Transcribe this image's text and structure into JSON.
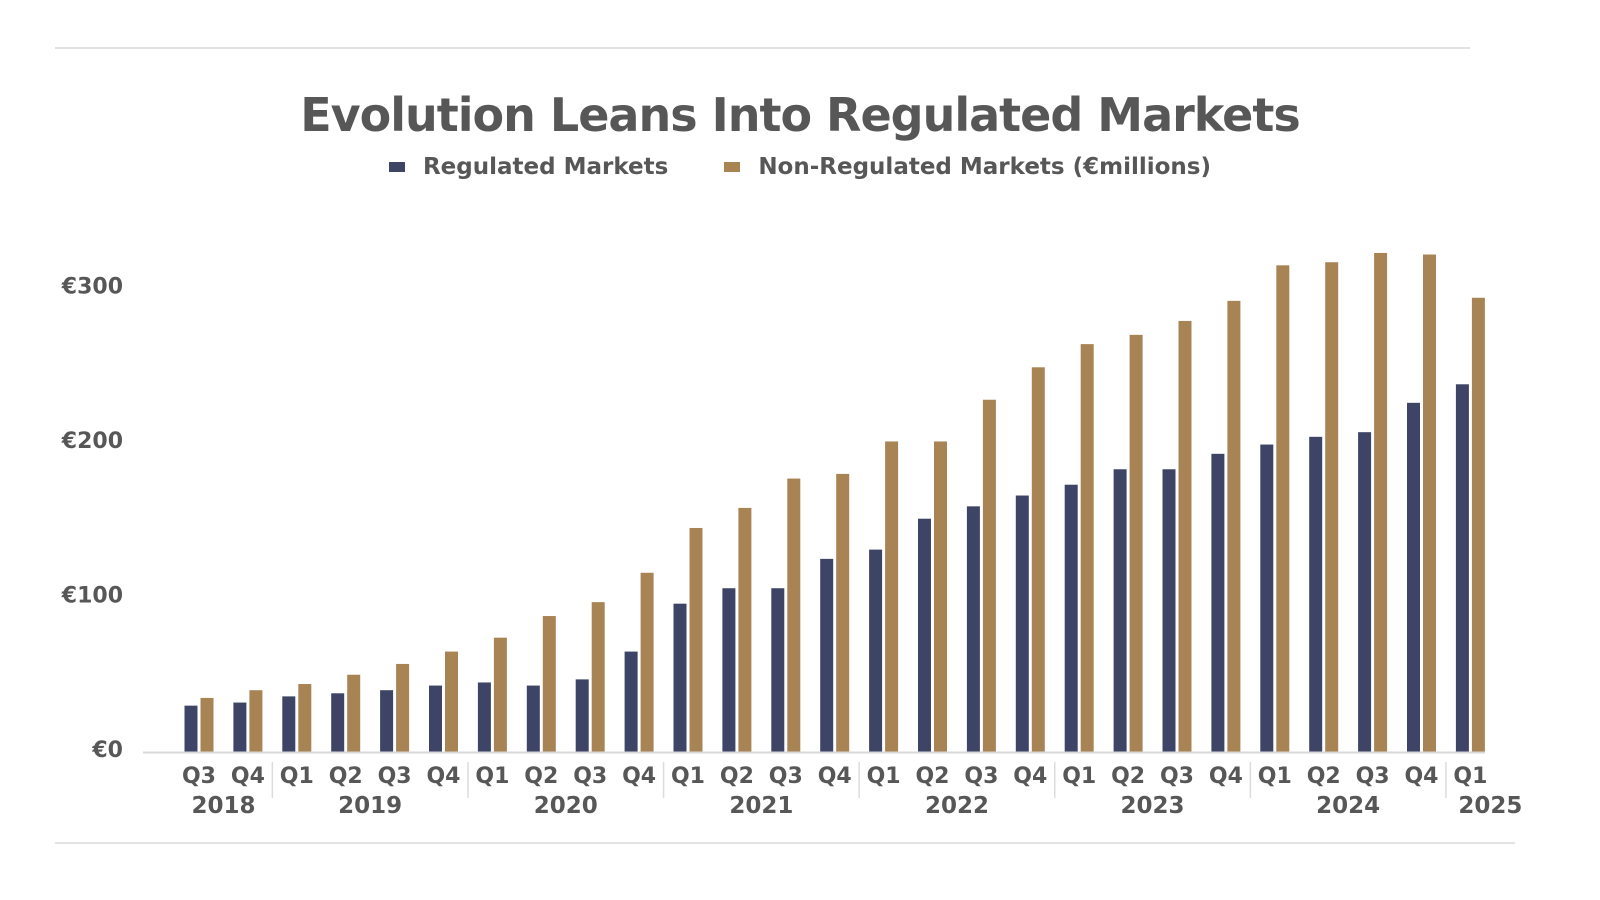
{
  "chart_data": {
    "type": "bar",
    "title": "Evolution Leans Into Regulated Markets",
    "xlabel": "",
    "ylabel": "",
    "ylim": [
      0,
      320
    ],
    "yticks": [
      {
        "value": 0,
        "label": "€0"
      },
      {
        "value": 100,
        "label": "€100"
      },
      {
        "value": 200,
        "label": "€200"
      },
      {
        "value": 300,
        "label": "€300"
      }
    ],
    "categories": [
      "Q3",
      "Q4",
      "Q1",
      "Q2",
      "Q3",
      "Q4",
      "Q1",
      "Q2",
      "Q3",
      "Q4",
      "Q1",
      "Q2",
      "Q3",
      "Q4",
      "Q1",
      "Q2",
      "Q3",
      "Q4",
      "Q1",
      "Q2",
      "Q3",
      "Q4",
      "Q1",
      "Q2",
      "Q3",
      "Q4",
      "Q1"
    ],
    "year_groups": [
      {
        "label": "2018",
        "count": 2
      },
      {
        "label": "2019",
        "count": 4
      },
      {
        "label": "2020",
        "count": 4
      },
      {
        "label": "2021",
        "count": 4
      },
      {
        "label": "2022",
        "count": 4
      },
      {
        "label": "2023",
        "count": 4
      },
      {
        "label": "2024",
        "count": 4
      },
      {
        "label": "2025",
        "count": 1
      }
    ],
    "series": [
      {
        "name": "Regulated Markets",
        "color": "#3d4466",
        "values": [
          30,
          32,
          36,
          38,
          40,
          43,
          45,
          43,
          47,
          65,
          96,
          106,
          106,
          125,
          131,
          151,
          159,
          166,
          173,
          183,
          183,
          193,
          199,
          204,
          207,
          226,
          238
        ]
      },
      {
        "name": "Non-Regulated Markets (€millions)",
        "color": "#a88454",
        "values": [
          35,
          40,
          44,
          50,
          57,
          65,
          74,
          88,
          97,
          116,
          145,
          158,
          177,
          180,
          201,
          201,
          228,
          249,
          264,
          270,
          279,
          292,
          315,
          317,
          323,
          322,
          294
        ]
      }
    ],
    "grid": false,
    "legend_position": "top-center"
  }
}
